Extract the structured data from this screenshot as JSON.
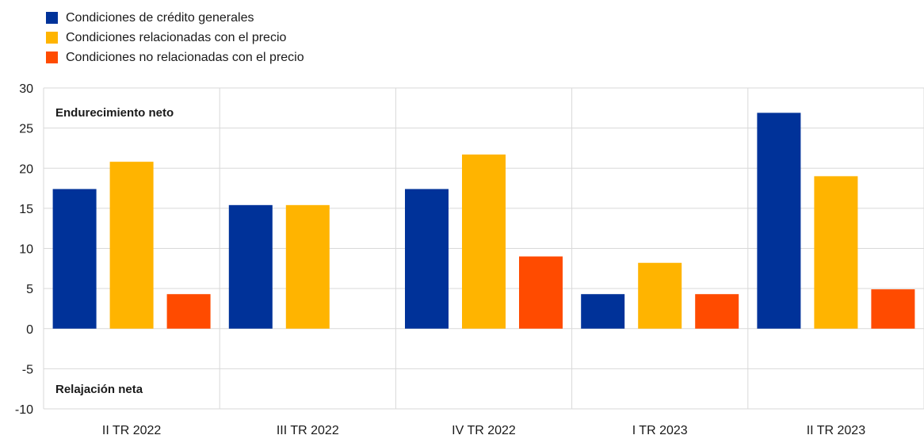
{
  "chart_data": {
    "type": "bar",
    "categories": [
      "II TR 2022",
      "III TR 2022",
      "IV TR 2022",
      "I TR 2023",
      "II TR 2023"
    ],
    "series": [
      {
        "name": "Condiciones de crédito generales",
        "color": "#003299",
        "values": [
          17.4,
          15.4,
          17.4,
          4.3,
          26.9
        ]
      },
      {
        "name": "Condiciones relacionadas con el precio",
        "color": "#ffb400",
        "values": [
          20.8,
          15.4,
          21.7,
          8.2,
          19.0
        ]
      },
      {
        "name": "Condiciones no relacionadas con el precio",
        "color": "#ff4b00",
        "values": [
          4.3,
          0,
          9.0,
          4.3,
          4.9
        ]
      }
    ],
    "ylim": [
      -10,
      30
    ],
    "yticks": [
      30,
      25,
      20,
      15,
      10,
      5,
      0,
      -5,
      -10
    ],
    "grid": true,
    "legend": "top-left",
    "annotations": [
      "Endurecimiento neto",
      "Relajación neta"
    ]
  }
}
